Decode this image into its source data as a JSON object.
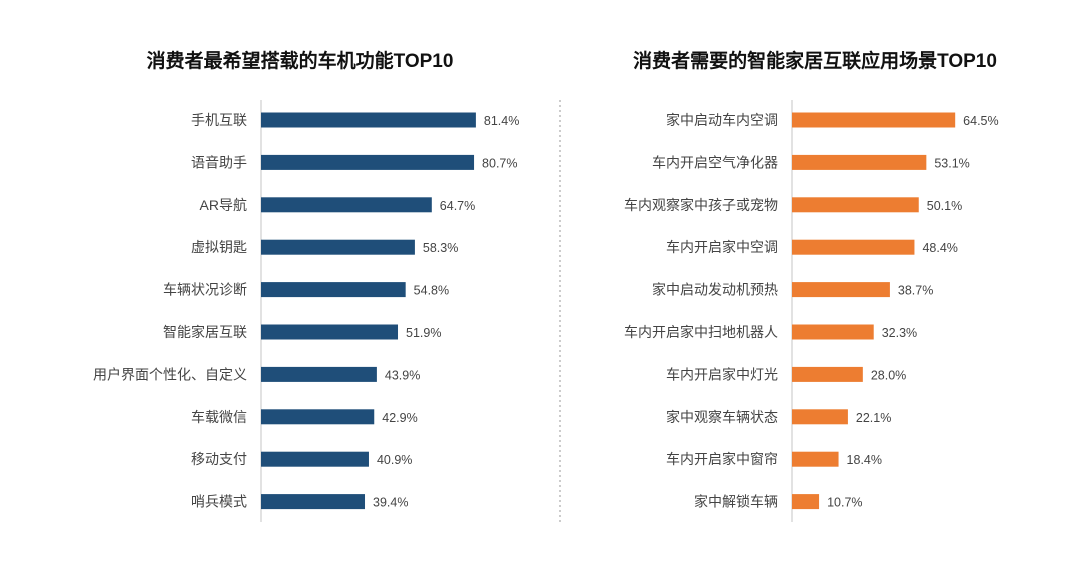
{
  "chart_data": [
    {
      "type": "bar",
      "orientation": "horizontal",
      "title": "消费者最希望搭载的车机功能TOP10",
      "categories": [
        "手机互联",
        "语音助手",
        "AR导航",
        "虚拟钥匙",
        "车辆状况诊断",
        "智能家居互联",
        "用户界面个性化、自定义",
        "车载微信",
        "移动支付",
        "哨兵模式"
      ],
      "values": [
        81.4,
        80.7,
        64.7,
        58.3,
        54.8,
        51.9,
        43.9,
        42.9,
        40.9,
        39.4
      ],
      "labels": [
        "81.4%",
        "80.7%",
        "64.7%",
        "58.3%",
        "54.8%",
        "51.9%",
        "43.9%",
        "42.9%",
        "40.9%",
        "39.4%"
      ],
      "unit": "%",
      "color": "#1f4e79",
      "grid": false
    },
    {
      "type": "bar",
      "orientation": "horizontal",
      "title": "消费者需要的智能家居互联应用场景TOP10",
      "categories": [
        "家中启动车内空调",
        "车内开启空气净化器",
        "车内观察家中孩子或宠物",
        "车内开启家中空调",
        "家中启动发动机预热",
        "车内开启家中扫地机器人",
        "车内开启家中灯光",
        "家中观察车辆状态",
        "车内开启家中窗帘",
        "家中解锁车辆"
      ],
      "values": [
        64.5,
        53.1,
        50.1,
        48.4,
        38.7,
        32.3,
        28.0,
        22.1,
        18.4,
        10.7
      ],
      "labels": [
        "64.5%",
        "53.1%",
        "50.1%",
        "48.4%",
        "38.7%",
        "32.3%",
        "28.0%",
        "22.1%",
        "18.4%",
        "10.7%"
      ],
      "unit": "%",
      "color": "#ed7d31",
      "grid": false
    }
  ]
}
